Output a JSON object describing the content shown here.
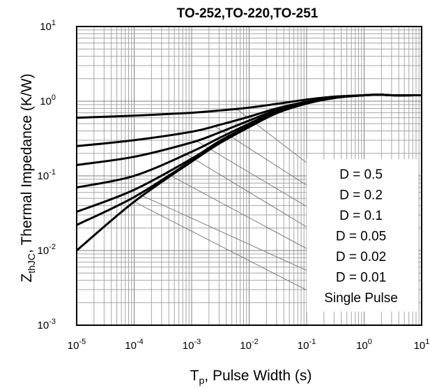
{
  "chart_data": {
    "type": "line",
    "title": "TO-252,TO-220,TO-251",
    "xlabel": {
      "main": "T",
      "sub": "p",
      "rest": ", Pulse Width (s)"
    },
    "ylabel": {
      "main": "Z",
      "sub": "thJC",
      "rest": ", Thermal Impedance (K/W)"
    },
    "x_scale": "log",
    "y_scale": "log",
    "xlim": [
      1e-05,
      10
    ],
    "ylim": [
      0.001,
      10
    ],
    "x_ticks": [
      {
        "base": "10",
        "exp": "-5"
      },
      {
        "base": "10",
        "exp": "-4"
      },
      {
        "base": "10",
        "exp": "-3"
      },
      {
        "base": "10",
        "exp": "-2"
      },
      {
        "base": "10",
        "exp": "-1"
      },
      {
        "base": "10",
        "exp": "0"
      },
      {
        "base": "10",
        "exp": "1"
      }
    ],
    "y_ticks": [
      {
        "base": "10",
        "exp": "-3"
      },
      {
        "base": "10",
        "exp": "-2"
      },
      {
        "base": "10",
        "exp": "-1"
      },
      {
        "base": "10",
        "exp": "0"
      },
      {
        "base": "10",
        "exp": "1"
      }
    ],
    "grid": true,
    "legend_position": "bottom-right",
    "series": [
      {
        "name": "D = 0.5",
        "x": [
          1e-05,
          0.0001,
          0.001,
          0.003,
          0.01,
          0.03,
          0.1,
          0.3,
          1,
          2,
          3,
          10
        ],
        "y": [
          0.6,
          0.64,
          0.7,
          0.75,
          0.82,
          0.92,
          1.05,
          1.15,
          1.2,
          1.22,
          1.2,
          1.2
        ]
      },
      {
        "name": "D = 0.2",
        "x": [
          1e-05,
          0.0001,
          0.001,
          0.003,
          0.01,
          0.03,
          0.1,
          0.3,
          1,
          2,
          3,
          10
        ],
        "y": [
          0.25,
          0.3,
          0.39,
          0.48,
          0.62,
          0.8,
          0.98,
          1.12,
          1.2,
          1.22,
          1.2,
          1.2
        ]
      },
      {
        "name": "D = 0.1",
        "x": [
          1e-05,
          0.0001,
          0.001,
          0.003,
          0.01,
          0.03,
          0.1,
          0.3,
          1,
          2,
          3,
          10
        ],
        "y": [
          0.14,
          0.18,
          0.28,
          0.38,
          0.55,
          0.76,
          0.96,
          1.12,
          1.2,
          1.22,
          1.2,
          1.2
        ]
      },
      {
        "name": "D = 0.05",
        "x": [
          1e-05,
          0.0001,
          0.001,
          0.003,
          0.01,
          0.03,
          0.1,
          0.3,
          1,
          2,
          3,
          10
        ],
        "y": [
          0.07,
          0.1,
          0.21,
          0.32,
          0.5,
          0.73,
          0.95,
          1.12,
          1.2,
          1.22,
          1.2,
          1.2
        ]
      },
      {
        "name": "D = 0.02",
        "x": [
          1e-05,
          0.0001,
          0.001,
          0.003,
          0.01,
          0.03,
          0.1,
          0.3,
          1,
          2,
          3,
          10
        ],
        "y": [
          0.033,
          0.065,
          0.17,
          0.29,
          0.47,
          0.71,
          0.94,
          1.11,
          1.2,
          1.22,
          1.2,
          1.2
        ]
      },
      {
        "name": "D = 0.01",
        "x": [
          1e-05,
          0.0001,
          0.001,
          0.003,
          0.01,
          0.03,
          0.1,
          0.3,
          1,
          2,
          3,
          10
        ],
        "y": [
          0.022,
          0.052,
          0.16,
          0.28,
          0.46,
          0.7,
          0.94,
          1.11,
          1.2,
          1.22,
          1.2,
          1.2
        ]
      },
      {
        "name": "Single Pulse",
        "x": [
          1e-05,
          0.0001,
          0.001,
          0.003,
          0.01,
          0.03,
          0.1,
          0.3,
          1,
          2,
          3,
          10
        ],
        "y": [
          0.01,
          0.045,
          0.155,
          0.27,
          0.45,
          0.69,
          0.93,
          1.1,
          1.2,
          1.22,
          1.2,
          1.2
        ]
      }
    ],
    "legend_entries": [
      "D = 0.5",
      "D = 0.2",
      "D = 0.1",
      "D = 0.05",
      "D = 0.02",
      "D = 0.01",
      "Single Pulse"
    ]
  }
}
